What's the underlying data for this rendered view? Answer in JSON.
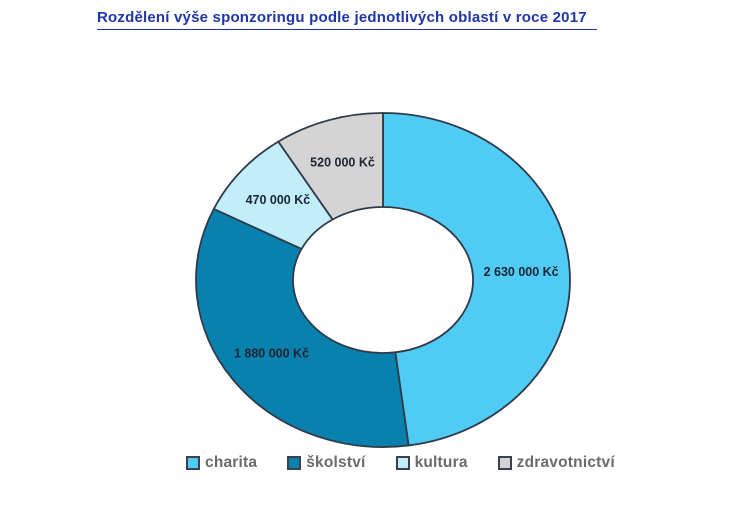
{
  "chart_data": {
    "type": "pie",
    "subtype": "doughnut",
    "title": "Rozdělení výše sponzoringu podle jednotlivých oblastí v roce 2017",
    "categories": [
      "charita",
      "školství",
      "kultura",
      "zdravotnictví"
    ],
    "values": [
      2630000,
      1880000,
      470000,
      520000
    ],
    "value_labels": [
      "2 630 000 Kč",
      "1 880 000 Kč",
      "470 000 Kč",
      "520 000 Kč"
    ],
    "colors": [
      "#4FCBF5",
      "#0881AE",
      "#C2EDFB",
      "#D4D4D4"
    ],
    "unit": "Kč",
    "start_angle_deg": 0,
    "direction": "clockwise",
    "legend_position": "bottom",
    "grid": false,
    "title_color": "#1F36A8",
    "label_color": "#1B2533",
    "legend_text_color": "#696B6E",
    "stroke_color": "#2F3B49"
  }
}
